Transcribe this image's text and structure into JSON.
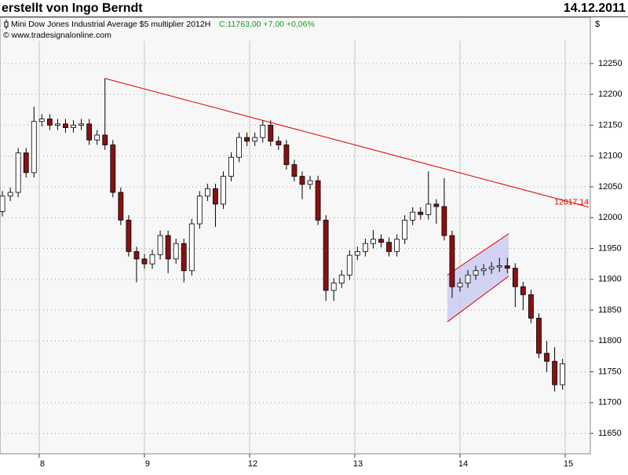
{
  "header": {
    "author": "erstellt von Ingo Berndt",
    "date": "14.12.2011"
  },
  "chart_data": {
    "type": "candlestick",
    "instrument": "Mini Dow Jones Industrial Average $5 multiplier 2012H",
    "quote": "C:11763,00 +7,00 +0,06%",
    "source": "© www.tradesignalonline.com",
    "y_unit": "$",
    "x": [
      -0.35,
      -0.275,
      -0.2,
      -0.125,
      -0.05,
      0.025,
      0.1,
      0.175,
      0.25,
      0.325,
      0.4,
      0.475,
      0.55,
      0.625,
      0.7,
      0.775,
      0.85,
      0.925,
      1.0,
      1.075,
      1.15,
      1.225,
      1.3,
      1.375,
      1.45,
      1.525,
      1.6,
      1.675,
      1.75,
      1.825,
      1.9,
      1.975,
      2.05,
      2.125,
      2.2,
      2.275,
      2.35,
      2.425,
      2.5,
      2.575,
      2.65,
      2.725,
      2.8,
      2.875,
      2.95,
      3.025,
      3.1,
      3.175,
      3.25,
      3.325,
      3.4,
      3.475,
      3.55,
      3.625,
      3.7,
      3.775,
      3.85,
      3.925,
      4.0,
      4.075,
      4.15,
      4.225,
      4.3,
      4.375,
      4.45,
      4.525,
      4.6,
      4.675,
      4.75,
      4.825,
      4.9,
      4.975
    ],
    "open": [
      12010,
      12035,
      12041,
      12105,
      12073,
      12156,
      12160,
      12150,
      12152,
      12146,
      12150,
      12152,
      12126,
      12134,
      12118,
      12041,
      11996,
      11945,
      11933,
      11925,
      11940,
      11971,
      11933,
      11958,
      11914,
      11990,
      12035,
      12047,
      12022,
      12067,
      12098,
      12130,
      12124,
      12130,
      12150,
      12124,
      12118,
      12086,
      12067,
      12054,
      12060,
      11996,
      11882,
      11894,
      11907,
      11939,
      11945,
      11958,
      11965,
      11960,
      11945,
      11965,
      11996,
      12009,
      12005,
      12022,
      12018,
      11971,
      11888,
      11894,
      11907,
      11914,
      11917,
      11920,
      11922,
      11918,
      11888,
      11875,
      11837,
      11780,
      11767,
      11729
    ],
    "high": [
      12043,
      12049,
      12113,
      12113,
      12180,
      12168,
      12168,
      12160,
      12160,
      12158,
      12160,
      12160,
      12142,
      12225,
      12126,
      12049,
      12004,
      11953,
      11941,
      11948,
      11979,
      11979,
      11966,
      11966,
      11998,
      12043,
      12055,
      12055,
      12075,
      12106,
      12138,
      12138,
      12138,
      12158,
      12158,
      12132,
      12126,
      12094,
      12075,
      12068,
      12068,
      12004,
      11902,
      11915,
      11947,
      11953,
      11966,
      11980,
      11973,
      11968,
      11973,
      12004,
      12017,
      12017,
      12075,
      12030,
      12064,
      11979,
      11902,
      11915,
      11922,
      11925,
      11928,
      11935,
      11935,
      11926,
      11896,
      11883,
      11845,
      11800,
      11790,
      11771
    ],
    "low": [
      12002,
      12027,
      12033,
      12065,
      12065,
      12148,
      12142,
      12142,
      12138,
      12138,
      12142,
      12118,
      12118,
      12110,
      12033,
      11988,
      11937,
      11895,
      11917,
      11917,
      11932,
      11910,
      11925,
      11895,
      11906,
      11982,
      12027,
      11985,
      12014,
      12059,
      12090,
      12116,
      12116,
      12122,
      12116,
      12110,
      12078,
      12059,
      12030,
      12046,
      11988,
      11865,
      11865,
      11886,
      11899,
      11931,
      11937,
      11950,
      11952,
      11937,
      11937,
      11957,
      11988,
      11997,
      11997,
      11990,
      11963,
      11870,
      11880,
      11886,
      11899,
      11906,
      11909,
      11912,
      11910,
      11855,
      11850,
      11829,
      11772,
      11750,
      11718,
      11721
    ],
    "close": [
      12035,
      12041,
      12105,
      12073,
      12156,
      12160,
      12150,
      12152,
      12146,
      12150,
      12152,
      12126,
      12134,
      12118,
      12041,
      11996,
      11945,
      11933,
      11925,
      11940,
      11971,
      11933,
      11958,
      11914,
      11990,
      12035,
      12047,
      12022,
      12067,
      12098,
      12130,
      12124,
      12130,
      12150,
      12124,
      12118,
      12086,
      12067,
      12054,
      12060,
      11996,
      11882,
      11894,
      11907,
      11939,
      11945,
      11958,
      11965,
      11960,
      11945,
      11965,
      11996,
      12009,
      12005,
      12022,
      12018,
      11971,
      11888,
      11894,
      11907,
      11914,
      11917,
      11920,
      11922,
      11918,
      11888,
      11875,
      11837,
      11780,
      11767,
      11729,
      11763
    ],
    "up_color": "#ffffff",
    "down_color": "#8b1010",
    "xlim": [
      -0.373,
      5.224
    ],
    "xticks": [
      {
        "value": 0,
        "label": "8"
      },
      {
        "value": 1,
        "label": "9"
      },
      {
        "value": 2,
        "label": "12"
      },
      {
        "value": 3,
        "label": "13"
      },
      {
        "value": 4,
        "label": "14"
      },
      {
        "value": 5,
        "label": "15"
      }
    ],
    "ylim": [
      11617,
      12325
    ],
    "yticks": [
      11650,
      11700,
      11750,
      11800,
      11850,
      11900,
      11950,
      12000,
      12050,
      12100,
      12150,
      12200,
      12250
    ],
    "grid": true,
    "trendline": {
      "x": [
        0.62,
        5.224
      ],
      "values": [
        12226,
        12017.14
      ],
      "label": "12017,14",
      "color": "#e00000"
    },
    "channel": {
      "x": [
        3.88,
        4.463
      ],
      "upper": [
        11907,
        11974
      ],
      "lower": [
        11831,
        11905
      ],
      "color": "#e00000",
      "fill": "#c8c8f0"
    }
  }
}
